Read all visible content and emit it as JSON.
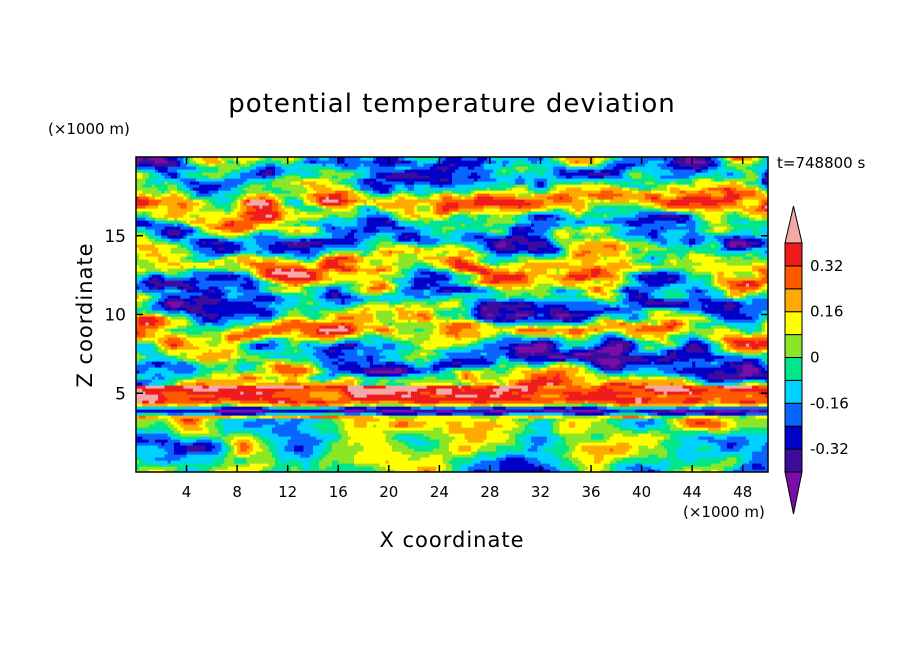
{
  "chart_data": {
    "type": "heatmap",
    "title": "potential temperature deviation",
    "xlabel": "X coordinate",
    "ylabel": "Z coordinate",
    "x_unit": "(×1000 m)",
    "y_unit": "(×1000 m)",
    "time_label": "t=748800 s",
    "xlim": [
      0,
      50
    ],
    "ylim": [
      0,
      20
    ],
    "x_ticks": [
      4,
      8,
      12,
      16,
      20,
      24,
      28,
      32,
      36,
      40,
      44,
      48
    ],
    "y_ticks": [
      5,
      10,
      15
    ],
    "x_tick_labels": [
      "4",
      "8",
      "12",
      "16",
      "20",
      "24",
      "28",
      "32",
      "36",
      "40",
      "44",
      "48"
    ],
    "y_tick_labels": [
      "5",
      "10",
      "15"
    ],
    "colorbar": {
      "levels": [
        -0.4,
        -0.32,
        -0.24,
        -0.16,
        -0.08,
        0,
        0.08,
        0.16,
        0.24,
        0.32,
        0.4
      ],
      "labels": [
        "0.32",
        "0.16",
        "0",
        "-0.16",
        "-0.32"
      ],
      "label_values": [
        0.32,
        0.16,
        0,
        -0.16,
        -0.32
      ],
      "colors": [
        "#7a0ca8",
        "#3c0c9c",
        "#0000c8",
        "#0a64ff",
        "#00d2ff",
        "#00e68c",
        "#8ce628",
        "#ffff00",
        "#ffaa00",
        "#ff5a00",
        "#ee1c1c",
        "#f4a8a8"
      ]
    },
    "field_description": "Layered turbulent field; strong positive (pink) band near z≈4.5, mixed layer below z≈3.5, alternating positive/negative layers above."
  }
}
